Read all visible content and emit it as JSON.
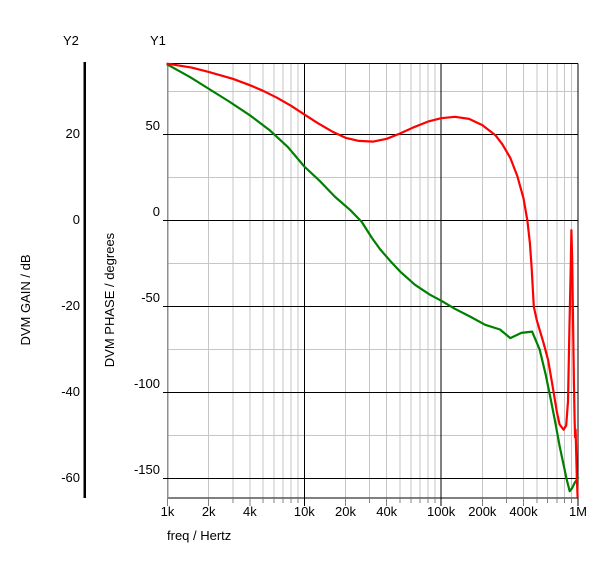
{
  "figure": {
    "y2_header": "Y2",
    "y1_header": "Y1"
  },
  "chart_data": {
    "type": "line",
    "title": "",
    "x_axis": {
      "label": "freq / Hertz",
      "scale": "log",
      "min_hz": 1000,
      "max_hz": 1000000,
      "major_black_lines_hz": [
        10000,
        100000
      ],
      "minor_grid_multiples": [
        2,
        3,
        4,
        5,
        6,
        7,
        8,
        9
      ],
      "tick_labels": [
        {
          "label": "1k",
          "hz": 1000
        },
        {
          "label": "2k",
          "hz": 2000
        },
        {
          "label": "4k",
          "hz": 4000
        },
        {
          "label": "10k",
          "hz": 10000
        },
        {
          "label": "20k",
          "hz": 20000
        },
        {
          "label": "40k",
          "hz": 40000
        },
        {
          "label": "100k",
          "hz": 100000
        },
        {
          "label": "200k",
          "hz": 200000
        },
        {
          "label": "400k",
          "hz": 400000
        },
        {
          "label": "1M",
          "hz": 1000000
        }
      ]
    },
    "gain_axis": {
      "header": "Y2",
      "label": "DVM GAIN / dB",
      "tick_labels": [
        "20",
        "0",
        "-20",
        "-40",
        "-60"
      ],
      "tick_values": [
        20,
        0,
        -20,
        -40,
        -60
      ],
      "range": [
        -64.5,
        36.6
      ],
      "minor_tick_values": [
        30,
        10,
        -10,
        -30,
        -50
      ]
    },
    "phase_axis": {
      "header": "Y1",
      "label": "DVM PHASE / degrees",
      "tick_labels": [
        "50",
        "0",
        "-50",
        "-100",
        "-150"
      ],
      "tick_values": [
        50,
        0,
        -50,
        -100,
        -150
      ],
      "range": [
        -161.2,
        91.4
      ],
      "minor_tick_values": [
        75,
        25,
        -25,
        -75,
        -125
      ]
    },
    "grid": {
      "major_color": "#000000",
      "minor_color": "#c6c6c6",
      "axis_gray": "#8f8f8f"
    },
    "series": [
      {
        "name": "DVM GAIN",
        "axis": "gain",
        "color": "#008000",
        "points": [
          [
            1000,
            36.3
          ],
          [
            1460,
            33.4
          ],
          [
            2040,
            30.5
          ],
          [
            2860,
            27.6
          ],
          [
            4000,
            24.5
          ],
          [
            5600,
            21.0
          ],
          [
            7600,
            17.1
          ],
          [
            10000,
            12.6
          ],
          [
            13000,
            9.2
          ],
          [
            16800,
            5.5
          ],
          [
            21600,
            2.5
          ],
          [
            26300,
            -0.3
          ],
          [
            31200,
            -4.0
          ],
          [
            35700,
            -6.6
          ],
          [
            42300,
            -9.3
          ],
          [
            50000,
            -11.8
          ],
          [
            64400,
            -14.9
          ],
          [
            82800,
            -17.2
          ],
          [
            100000,
            -18.6
          ],
          [
            126000,
            -20.5
          ],
          [
            163000,
            -22.3
          ],
          [
            210000,
            -24.2
          ],
          [
            269000,
            -25.3
          ],
          [
            320000,
            -27.3
          ],
          [
            385000,
            -26.1
          ],
          [
            462000,
            -25.8
          ],
          [
            525000,
            -30.0
          ],
          [
            580000,
            -35.7
          ],
          [
            632000,
            -41.5
          ],
          [
            686000,
            -47.3
          ],
          [
            734000,
            -52.4
          ],
          [
            785000,
            -56.8
          ],
          [
            826000,
            -60.1
          ],
          [
            870000,
            -62.9
          ],
          [
            906000,
            -62.2
          ],
          [
            944000,
            -61.0
          ],
          [
            1000000,
            -59.8
          ]
        ]
      },
      {
        "name": "DVM PHASE",
        "axis": "phase",
        "color": "#ff0000",
        "points": [
          [
            1000,
            91.3
          ],
          [
            1500,
            89.0
          ],
          [
            2000,
            86.5
          ],
          [
            3000,
            82.5
          ],
          [
            4000,
            78.8
          ],
          [
            5000,
            75.5
          ],
          [
            6300,
            71.5
          ],
          [
            8000,
            66.8
          ],
          [
            10000,
            61.8
          ],
          [
            12600,
            56.6
          ],
          [
            16000,
            51.8
          ],
          [
            20000,
            48.2
          ],
          [
            25000,
            46.4
          ],
          [
            32000,
            46.0
          ],
          [
            40000,
            47.6
          ],
          [
            50000,
            50.7
          ],
          [
            63000,
            54.3
          ],
          [
            80000,
            57.6
          ],
          [
            100000,
            59.6
          ],
          [
            126000,
            60.4
          ],
          [
            160000,
            59.2
          ],
          [
            200000,
            55.6
          ],
          [
            250000,
            49.6
          ],
          [
            280000,
            44.5
          ],
          [
            320000,
            36.5
          ],
          [
            360000,
            26.0
          ],
          [
            400000,
            13.0
          ],
          [
            427000,
            0.0
          ],
          [
            445000,
            -13.0
          ],
          [
            458000,
            -27.0
          ],
          [
            475000,
            -50.0
          ],
          [
            499000,
            -57.7
          ],
          [
            560000,
            -71.0
          ],
          [
            605000,
            -81.0
          ],
          [
            650000,
            -95.5
          ],
          [
            700000,
            -111.0
          ],
          [
            734000,
            -118.5
          ],
          [
            785000,
            -121.5
          ],
          [
            820000,
            -119.0
          ],
          [
            845000,
            -105.0
          ],
          [
            866000,
            -63.5
          ],
          [
            884000,
            -28.5
          ],
          [
            895000,
            -5.5
          ],
          [
            907000,
            -23.0
          ],
          [
            918000,
            -52.0
          ],
          [
            933000,
            -93.5
          ],
          [
            944000,
            -115.5
          ],
          [
            953000,
            -126.0
          ],
          [
            961000,
            -121.5
          ],
          [
            969000,
            -133.0
          ],
          [
            980000,
            -149.0
          ],
          [
            993000,
            -160.5
          ]
        ]
      }
    ]
  }
}
